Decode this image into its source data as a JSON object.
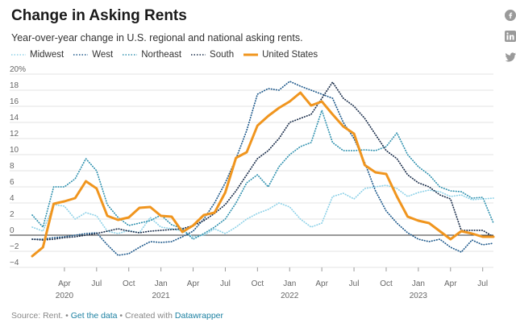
{
  "title": "Change in Asking Rents",
  "subtitle": "Year-over-year change in U.S. regional and national asking rents.",
  "footer": {
    "source": "Source: Rent. ",
    "sep1": "• ",
    "get_data": "Get the data",
    "sep2": " • Created with ",
    "datawrapper": "Datawrapper"
  },
  "social": [
    "facebook-icon",
    "linkedin-icon",
    "twitter-icon"
  ],
  "chart_data": {
    "type": "line",
    "ylim": [
      -4,
      20
    ],
    "yticks": [
      -4,
      -2,
      0,
      2,
      4,
      6,
      8,
      10,
      12,
      14,
      16,
      18,
      20
    ],
    "ytick_labels": [
      "−4",
      "−2",
      "0",
      "2",
      "4",
      "6",
      "8",
      "10",
      "12",
      "14",
      "16",
      "18",
      "20%"
    ],
    "x_start": "2020-01",
    "x_end": "2023-08",
    "xticks": [
      {
        "month": "2020-04",
        "label": "Apr",
        "year": "2020"
      },
      {
        "month": "2020-07",
        "label": "Jul",
        "year": ""
      },
      {
        "month": "2020-10",
        "label": "Oct",
        "year": ""
      },
      {
        "month": "2021-01",
        "label": "Jan",
        "year": "2021"
      },
      {
        "month": "2021-04",
        "label": "Apr",
        "year": ""
      },
      {
        "month": "2021-07",
        "label": "Jul",
        "year": ""
      },
      {
        "month": "2021-10",
        "label": "Oct",
        "year": ""
      },
      {
        "month": "2022-01",
        "label": "Jan",
        "year": "2022"
      },
      {
        "month": "2022-04",
        "label": "Apr",
        "year": ""
      },
      {
        "month": "2022-07",
        "label": "Jul",
        "year": ""
      },
      {
        "month": "2022-10",
        "label": "Oct",
        "year": ""
      },
      {
        "month": "2023-01",
        "label": "Jan",
        "year": "2023"
      },
      {
        "month": "2023-04",
        "label": "Apr",
        "year": ""
      },
      {
        "month": "2023-07",
        "label": "Jul",
        "year": ""
      }
    ],
    "x": [
      "2020-01",
      "2020-02",
      "2020-03",
      "2020-04",
      "2020-05",
      "2020-06",
      "2020-07",
      "2020-08",
      "2020-09",
      "2020-10",
      "2020-11",
      "2020-12",
      "2021-01",
      "2021-02",
      "2021-03",
      "2021-04",
      "2021-05",
      "2021-06",
      "2021-07",
      "2021-08",
      "2021-09",
      "2021-10",
      "2021-11",
      "2021-12",
      "2022-01",
      "2022-02",
      "2022-03",
      "2022-04",
      "2022-05",
      "2022-06",
      "2022-07",
      "2022-08",
      "2022-09",
      "2022-10",
      "2022-11",
      "2022-12",
      "2023-01",
      "2023-02",
      "2023-03",
      "2023-04",
      "2023-05",
      "2023-06",
      "2023-07",
      "2023-08"
    ],
    "series": [
      {
        "name": "Midwest",
        "color": "#8fd2e8",
        "style": "dotted-light",
        "values": [
          1.0,
          0.5,
          3.8,
          3.6,
          2.0,
          2.8,
          2.4,
          0.5,
          0.2,
          0.6,
          0.3,
          2.2,
          1.0,
          0.8,
          0.5,
          -0.2,
          0.0,
          0.8,
          0.2,
          1.0,
          2.0,
          2.7,
          3.2,
          4.0,
          3.5,
          2.0,
          1.0,
          1.5,
          4.8,
          5.2,
          4.5,
          5.8,
          6.0,
          6.2,
          5.8,
          4.8,
          5.3,
          5.6,
          5.4,
          4.8,
          5.0,
          4.4,
          4.5,
          4.6
        ]
      },
      {
        "name": "West",
        "color": "#1f5a8c",
        "style": "dotted",
        "values": [
          -0.5,
          -0.5,
          -0.3,
          -0.2,
          0.0,
          0.2,
          0.3,
          -1.2,
          -2.5,
          -2.3,
          -1.5,
          -0.8,
          -0.9,
          -0.8,
          -0.2,
          0.5,
          2.0,
          4.0,
          6.5,
          9.5,
          13.0,
          17.5,
          18.2,
          18.0,
          19.1,
          18.5,
          18.0,
          17.5,
          17.0,
          14.0,
          12.0,
          9.0,
          5.5,
          3.0,
          1.5,
          0.3,
          -0.5,
          -0.8,
          -0.5,
          -1.5,
          -2.1,
          -0.6,
          -1.2,
          -1.0
        ]
      },
      {
        "name": "Northeast",
        "color": "#3393b0",
        "style": "dotted",
        "values": [
          2.5,
          1.0,
          6.0,
          6.0,
          7.0,
          9.5,
          8.0,
          3.8,
          2.2,
          1.2,
          1.5,
          1.8,
          2.5,
          1.3,
          0.8,
          -0.5,
          0.2,
          1.0,
          2.0,
          4.0,
          6.5,
          7.5,
          6.0,
          8.5,
          10.0,
          11.0,
          11.5,
          15.5,
          11.5,
          10.5,
          10.5,
          10.6,
          10.5,
          11.0,
          12.7,
          10.0,
          8.5,
          7.5,
          6.0,
          5.5,
          5.4,
          4.6,
          4.7,
          1.5
        ]
      },
      {
        "name": "South",
        "color": "#1a2d4a",
        "style": "dotted",
        "values": [
          -0.5,
          -0.6,
          -0.5,
          -0.3,
          -0.2,
          0.0,
          0.2,
          0.5,
          0.8,
          0.5,
          0.3,
          0.5,
          0.6,
          0.7,
          0.8,
          1.2,
          1.8,
          2.7,
          3.8,
          5.5,
          7.5,
          9.5,
          10.5,
          12.0,
          14.0,
          14.5,
          15.0,
          17.0,
          19.0,
          17.0,
          16.0,
          14.5,
          12.5,
          10.5,
          9.5,
          7.5,
          6.5,
          6.0,
          5.0,
          4.5,
          0.6,
          0.6,
          0.6,
          -0.2
        ]
      },
      {
        "name": "United States",
        "color": "#f0951e",
        "style": "solid",
        "values": [
          -2.6,
          -1.5,
          3.9,
          4.2,
          4.6,
          6.7,
          5.8,
          2.4,
          1.9,
          2.2,
          3.4,
          3.5,
          2.4,
          2.3,
          0.4,
          1.2,
          2.5,
          2.8,
          5.3,
          9.6,
          10.3,
          13.6,
          14.8,
          15.8,
          16.6,
          17.7,
          16.1,
          16.6,
          15.0,
          13.5,
          12.6,
          8.7,
          7.8,
          7.6,
          4.8,
          2.3,
          1.8,
          1.5,
          0.5,
          -0.5,
          0.5,
          0.2,
          -0.2,
          -0.2
        ]
      }
    ]
  }
}
